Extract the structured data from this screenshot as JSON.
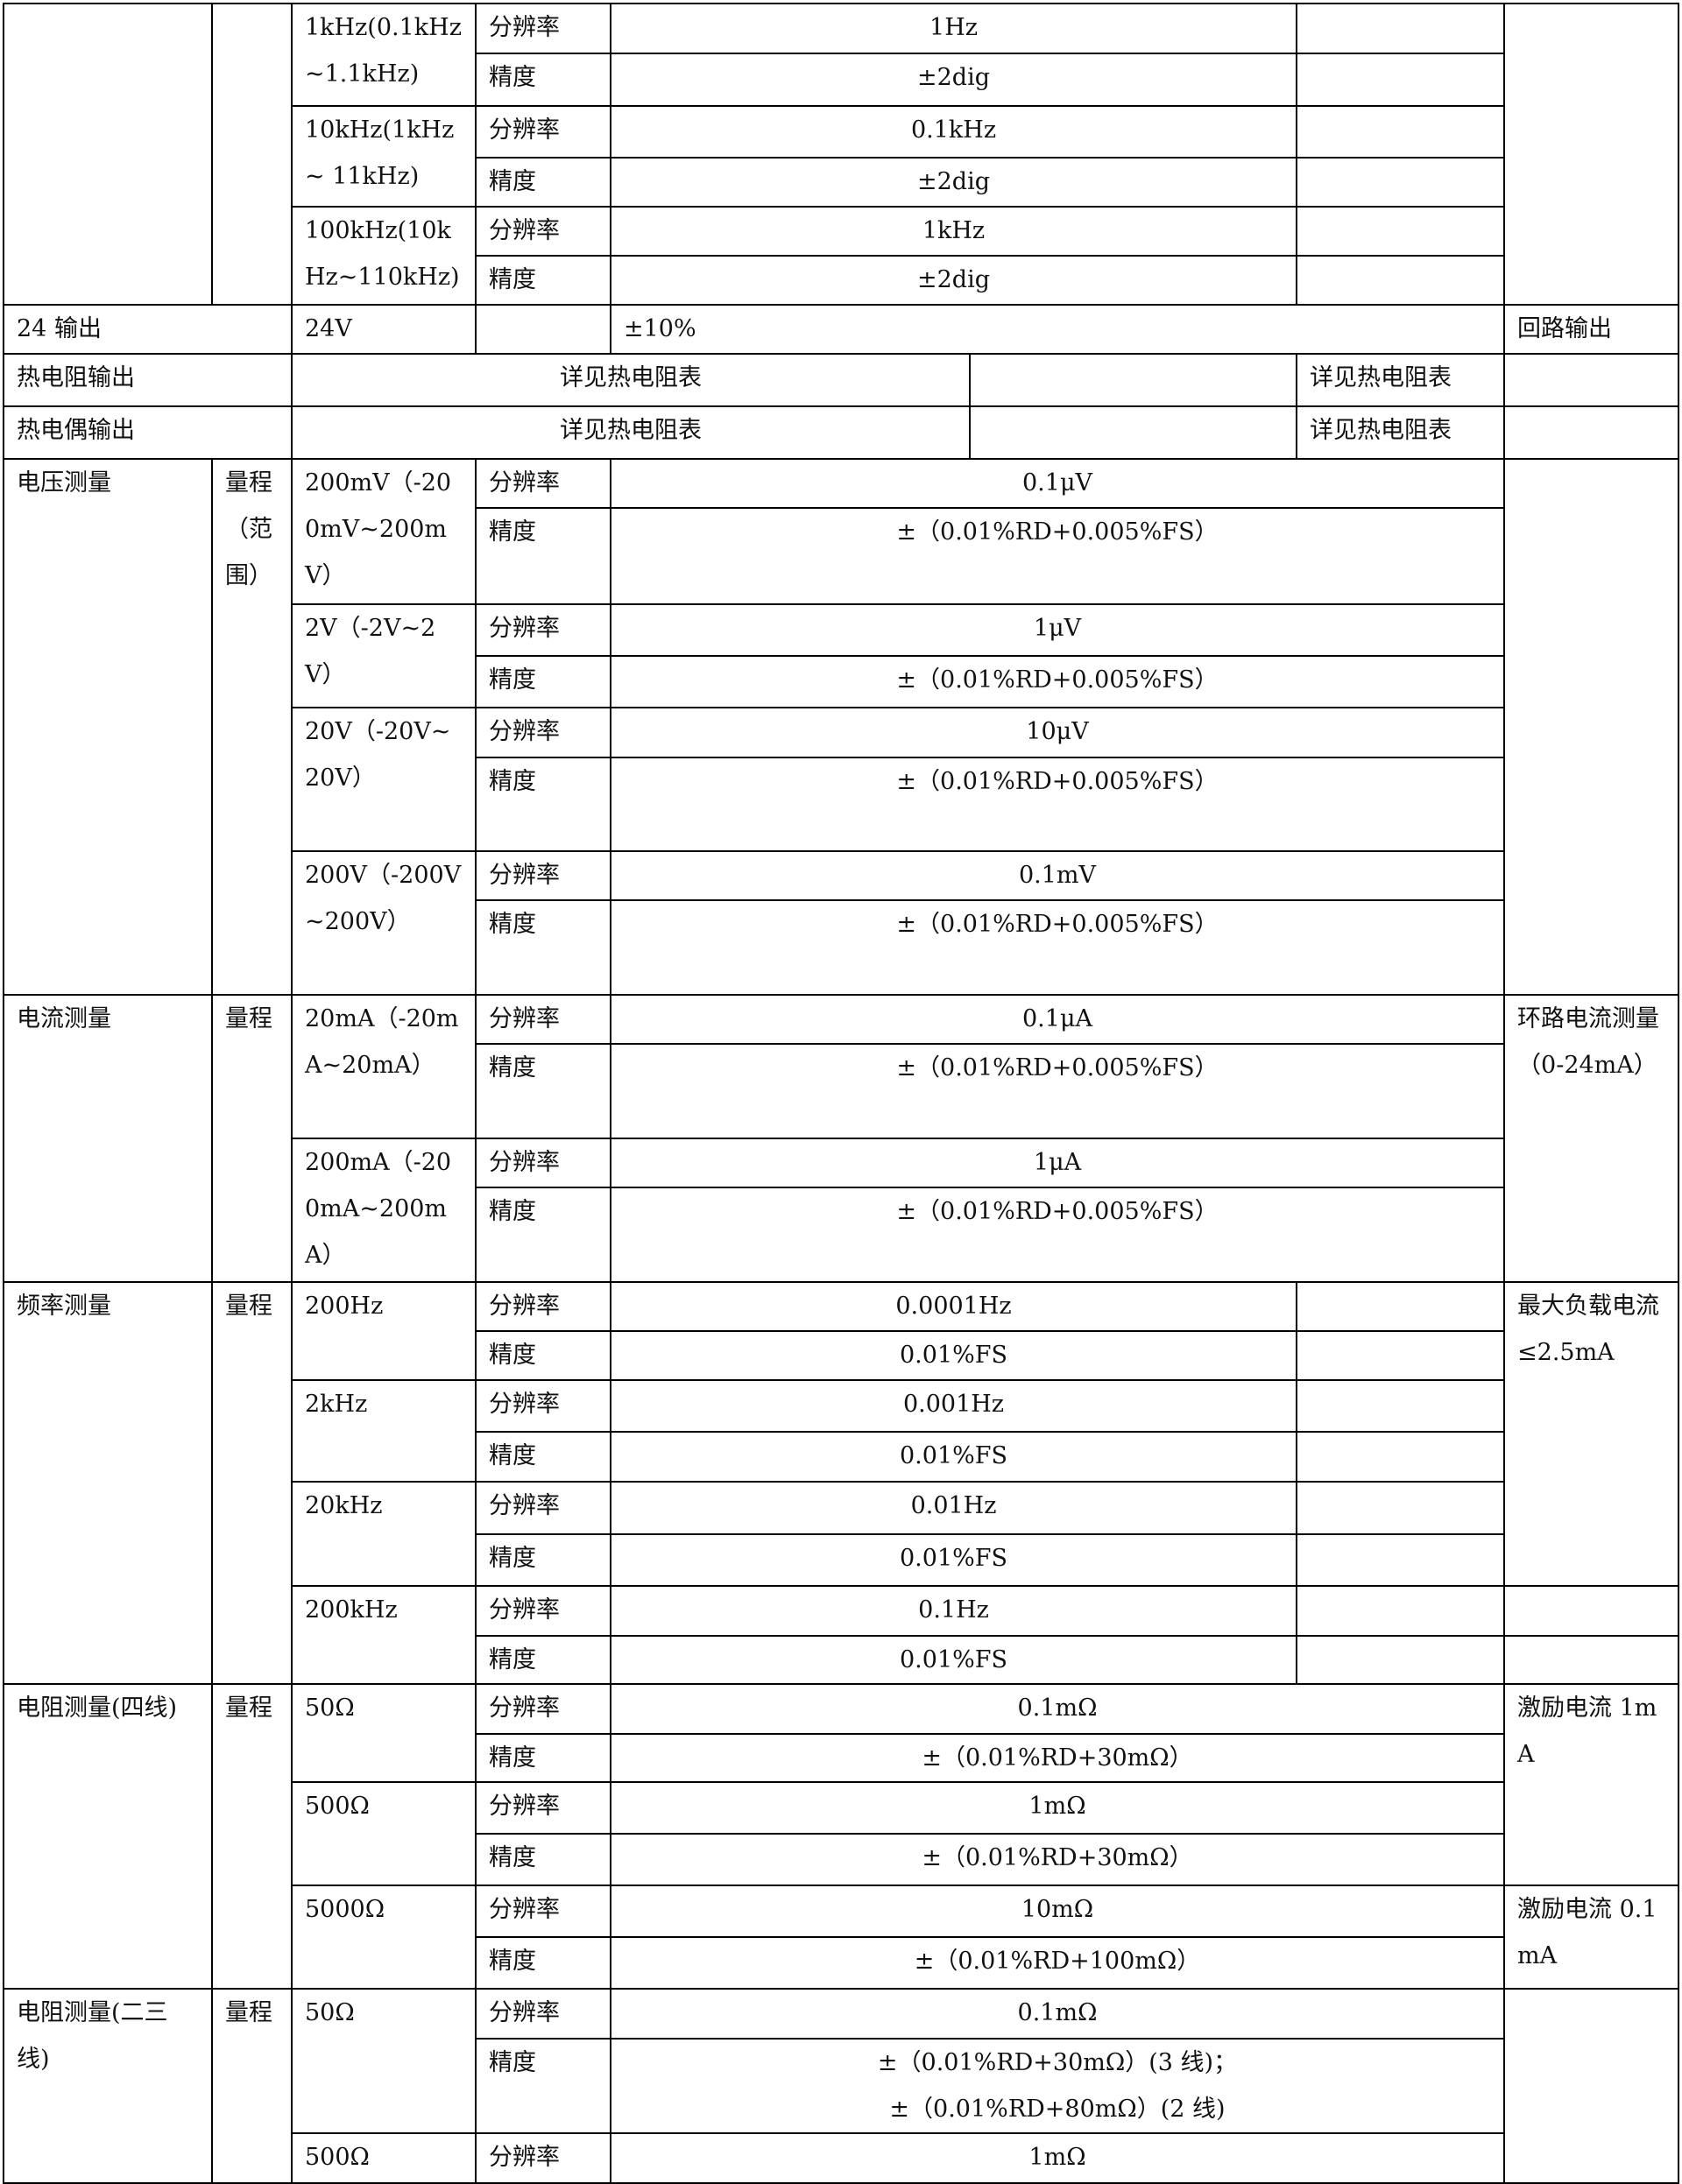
{
  "table": {
    "rows": [
      [
        "1kHz(0.1kHz ~1.1kHz)",
        "分辨率",
        "1Hz"
      ],
      [
        "精度",
        "±2dig"
      ],
      [
        "10kHz(1kHz~ 11kHz)",
        "分辨率",
        "0.1kHz"
      ],
      [
        "精度",
        "±2dig"
      ],
      [
        "100kHz(10k Hz~110kHz)",
        "分辨率",
        "1kHz"
      ],
      [
        "精度",
        "±2dig"
      ],
      [
        "24 输出",
        "24V",
        "±10%",
        "回路输出"
      ],
      [
        "热电阻输出",
        "详见热电阻表",
        "详见热电阻表"
      ],
      [
        "热电偶输出",
        "详见热电阻表",
        "详见热电阻表"
      ],
      [
        "电压测量",
        "量程（范围）",
        "200mV（-200mV~200mV）",
        "分辨率",
        "0.1μV"
      ],
      [
        "精度",
        "±（0.01%RD+0.005%FS）"
      ],
      [
        "2V（-2V~2V）",
        "分辨率",
        "1μV"
      ],
      [
        "精度",
        "±（0.01%RD+0.005%FS）"
      ],
      [
        "20V（-20V~20V）",
        "分辨率",
        "10μV"
      ],
      [
        "精度",
        "±（0.01%RD+0.005%FS）"
      ],
      [
        "200V（-200V~200V）",
        "分辨率",
        "0.1mV"
      ],
      [
        "精度",
        "±（0.01%RD+0.005%FS）"
      ],
      [
        "电流测量",
        "量程",
        "20mA（-20mA~20mA）",
        "分辨率",
        "0.1μA",
        "环路电流测量（0-24mA）"
      ],
      [
        "精度",
        "±（0.01%RD+0.005%FS）"
      ],
      [
        "200mA（-200mA~200mA）",
        "分辨率",
        "1μA"
      ],
      [
        "精度",
        "±（0.01%RD+0.005%FS）"
      ],
      [
        "频率测量",
        "量程",
        "200Hz",
        "分辨率",
        "0.0001Hz",
        "最大负载电流≤2.5mA"
      ],
      [
        "精度",
        "0.01%FS"
      ],
      [
        "2kHz",
        "分辨率",
        "0.001Hz"
      ],
      [
        "精度",
        "0.01%FS"
      ],
      [
        "20kHz",
        "分辨率",
        "0.01Hz"
      ],
      [
        "精度",
        "0.01%FS"
      ],
      [
        "200kHz",
        "分辨率",
        "0.1Hz"
      ],
      [
        "精度",
        "0.01%FS"
      ],
      [
        "电阻测量(四线)",
        "量程",
        "50Ω",
        "分辨率",
        "0.1mΩ",
        "激励电流 1mA"
      ],
      [
        "精度",
        "±（0.01%RD+30mΩ）"
      ],
      [
        "500Ω",
        "分辨率",
        "1mΩ"
      ],
      [
        "精度",
        "±（0.01%RD+30mΩ）"
      ],
      [
        "5000Ω",
        "分辨率",
        "10mΩ",
        "激励电流 0.1mA"
      ],
      [
        "精度",
        "±（0.01%RD+100mΩ）"
      ],
      [
        "电阻测量(二三线)",
        "量程",
        "50Ω",
        "分辨率",
        "0.1mΩ"
      ],
      [
        "精度",
        "±（0.01%RD+30mΩ）(3 线)；",
        "±（0.01%RD+80mΩ）(2 线)"
      ],
      [
        "500Ω",
        "分辨率",
        "1mΩ"
      ]
    ]
  }
}
